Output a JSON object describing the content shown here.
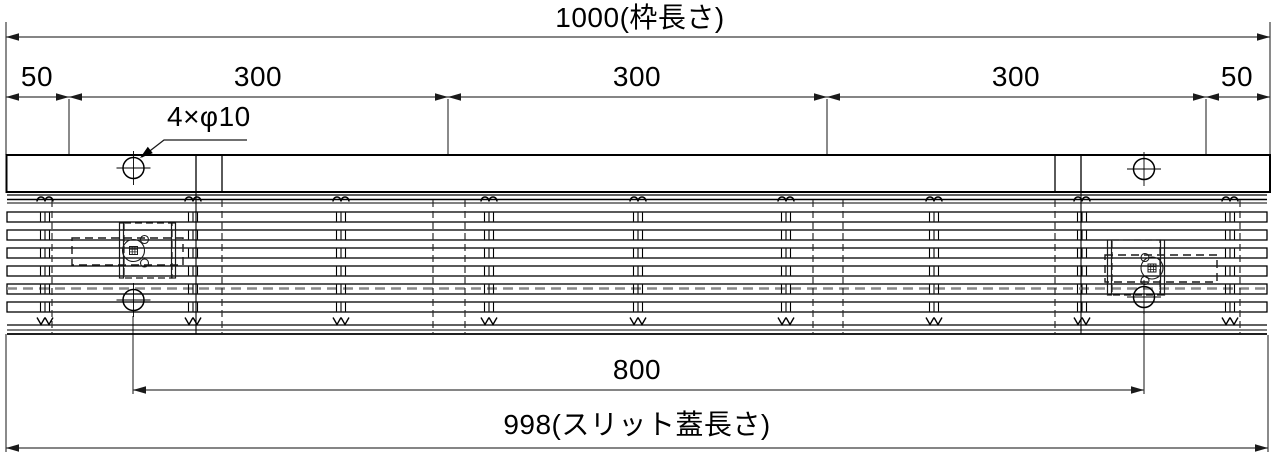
{
  "drawing": {
    "title_dimension": "1000(枠長さ)",
    "segment_dimensions": [
      "50",
      "300",
      "300",
      "300",
      "50"
    ],
    "hole_callout": "4×φ10",
    "bolt_pitch_dimension": "800",
    "cover_length_dimension": "998(スリット蓋長さ)",
    "colors": {
      "object_line": "#000000",
      "dimension_line": "#3c3c3c",
      "hidden_line": "#8a8a8a",
      "background": "#ffffff"
    }
  }
}
